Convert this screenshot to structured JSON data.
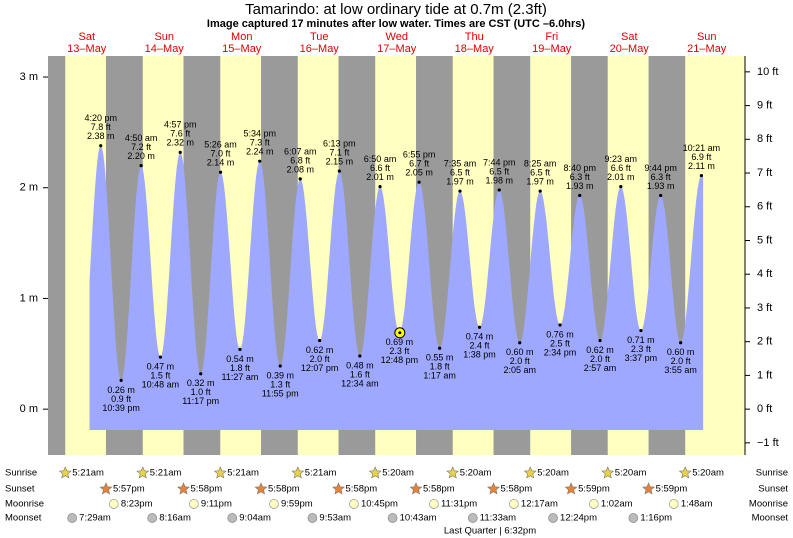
{
  "chart_data": {
    "type": "tide",
    "title": "Tamarindo: at low  ordinary tide at 0.7m (2.3ft)",
    "subtitle": "Image captured 17 minutes after low water. Times are CST (UTC –6.0hrs)",
    "days": [
      {
        "name": "Sat",
        "date": "13–May"
      },
      {
        "name": "Sun",
        "date": "14–May"
      },
      {
        "name": "Mon",
        "date": "15–May"
      },
      {
        "name": "Tue",
        "date": "16–May"
      },
      {
        "name": "Wed",
        "date": "17–May"
      },
      {
        "name": "Thu",
        "date": "18–May"
      },
      {
        "name": "Fri",
        "date": "19–May"
      },
      {
        "name": "Sat",
        "date": "20–May"
      },
      {
        "name": "Sun",
        "date": "21–May"
      }
    ],
    "tides": {
      "times": [
        "4:20 pm",
        "10:39 pm",
        "4:50 am",
        "10:48 am",
        "4:57 pm",
        "11:17 pm",
        "5:26 am",
        "11:27 am",
        "5:34 pm",
        "11:55 pm",
        "6:07 am",
        "12:07 pm",
        "6:13 pm",
        "12:34 am",
        "6:50 am",
        "12:48 pm",
        "6:55 pm",
        "1:17 am",
        "7:35 am",
        "1:38 pm",
        "7:44 pm",
        "2:05 am",
        "8:25 am",
        "2:34 pm",
        "8:40 pm",
        "2:57 am",
        "9:23 am",
        "3:37 pm",
        "9:44 pm",
        "3:55 am",
        "10:21 am"
      ],
      "ft_labels": [
        "7.8 ft",
        "0.9 ft",
        "7.2 ft",
        "1.5 ft",
        "7.6 ft",
        "1.0 ft",
        "7.0 ft",
        "1.8 ft",
        "7.3 ft",
        "1.3 ft",
        "6.8 ft",
        "2.0 ft",
        "7.1 ft",
        "1.6 ft",
        "6.6 ft",
        "2.3 ft",
        "6.7 ft",
        "1.8 ft",
        "6.5 ft",
        "2.4 ft",
        "6.5 ft",
        "2.0 ft",
        "6.5 ft",
        "2.5 ft",
        "6.3 ft",
        "2.0 ft",
        "6.6 ft",
        "2.3 ft",
        "6.3 ft",
        "2.0 ft",
        "6.9 ft"
      ],
      "values": [
        2.38,
        0.26,
        2.2,
        0.47,
        2.32,
        0.32,
        2.14,
        0.54,
        2.24,
        0.39,
        2.08,
        0.62,
        2.15,
        0.48,
        2.01,
        0.69,
        2.05,
        0.55,
        1.97,
        0.74,
        1.98,
        0.6,
        1.97,
        0.76,
        1.93,
        0.62,
        2.01,
        0.71,
        1.93,
        0.6,
        2.11
      ],
      "value_labels": [
        "2.38 m",
        "0.26 m",
        "2.20 m",
        "0.47 m",
        "2.32 m",
        "0.32 m",
        "2.14 m",
        "0.54 m",
        "2.24 m",
        "0.39 m",
        "2.08 m",
        "0.62 m",
        "2.15 m",
        "0.48 m",
        "2.01 m",
        "0.69 m",
        "2.05 m",
        "0.55 m",
        "1.97 m",
        "0.74 m",
        "1.98 m",
        "0.60 m",
        "1.97 m",
        "0.76 m",
        "1.93 m",
        "0.62 m",
        "2.01 m",
        "0.71 m",
        "1.93 m",
        "0.60 m",
        "2.11 m"
      ],
      "color": "#9fa8ff"
    },
    "ylim": [
      -0.414,
      3.19
    ],
    "yticks": [
      {
        "value": 0,
        "label": "0 m"
      },
      {
        "value": 1,
        "label": "1 m"
      },
      {
        "value": 2,
        "label": "2 m"
      },
      {
        "value": 3,
        "label": "3 m"
      }
    ],
    "y2lim": [
      -1.36,
      10.47
    ],
    "y2ticks": [
      {
        "value": -1,
        "label": "−1 ft"
      },
      {
        "value": 0,
        "label": "0 ft"
      },
      {
        "value": 1,
        "label": "1 ft"
      },
      {
        "value": 2,
        "label": "2 ft"
      },
      {
        "value": 3,
        "label": "3 ft"
      },
      {
        "value": 4,
        "label": "4 ft"
      },
      {
        "value": 5,
        "label": "5 ft"
      },
      {
        "value": 6,
        "label": "6 ft"
      },
      {
        "value": 7,
        "label": "7 ft"
      },
      {
        "value": 8,
        "label": "8 ft"
      },
      {
        "value": 9,
        "label": "9 ft"
      },
      {
        "value": 10,
        "label": "10 ft"
      }
    ],
    "rows": [
      {
        "label": "Sunrise",
        "icon": "sun-rise",
        "times": [
          "5:21am",
          "5:21am",
          "5:21am",
          "5:21am",
          "5:20am",
          "5:20am",
          "5:20am",
          "5:20am",
          "5:20am"
        ]
      },
      {
        "label": "Sunset",
        "icon": "sun-set",
        "times": [
          "5:57pm",
          "5:58pm",
          "5:58pm",
          "5:58pm",
          "5:58pm",
          "5:58pm",
          "5:59pm",
          "5:59pm",
          null
        ]
      },
      {
        "label": "Moonrise",
        "icon": "moon-rise",
        "times": [
          "8:23pm",
          "9:11pm",
          "9:59pm",
          "10:45pm",
          "11:31pm",
          null,
          "12:17am",
          "1:02am",
          "1:48am"
        ]
      },
      {
        "label": "Moonset",
        "icon": "moon-set",
        "times": [
          "7:29am",
          "8:16am",
          "9:04am",
          "9:53am",
          "10:43am",
          "11:33am",
          "12:24pm",
          "1:16pm",
          null
        ]
      }
    ],
    "moon_phase": "Last Quarter | 6:32pm",
    "day_color": "#ffffc0",
    "night_color": "#9a9a9a"
  }
}
